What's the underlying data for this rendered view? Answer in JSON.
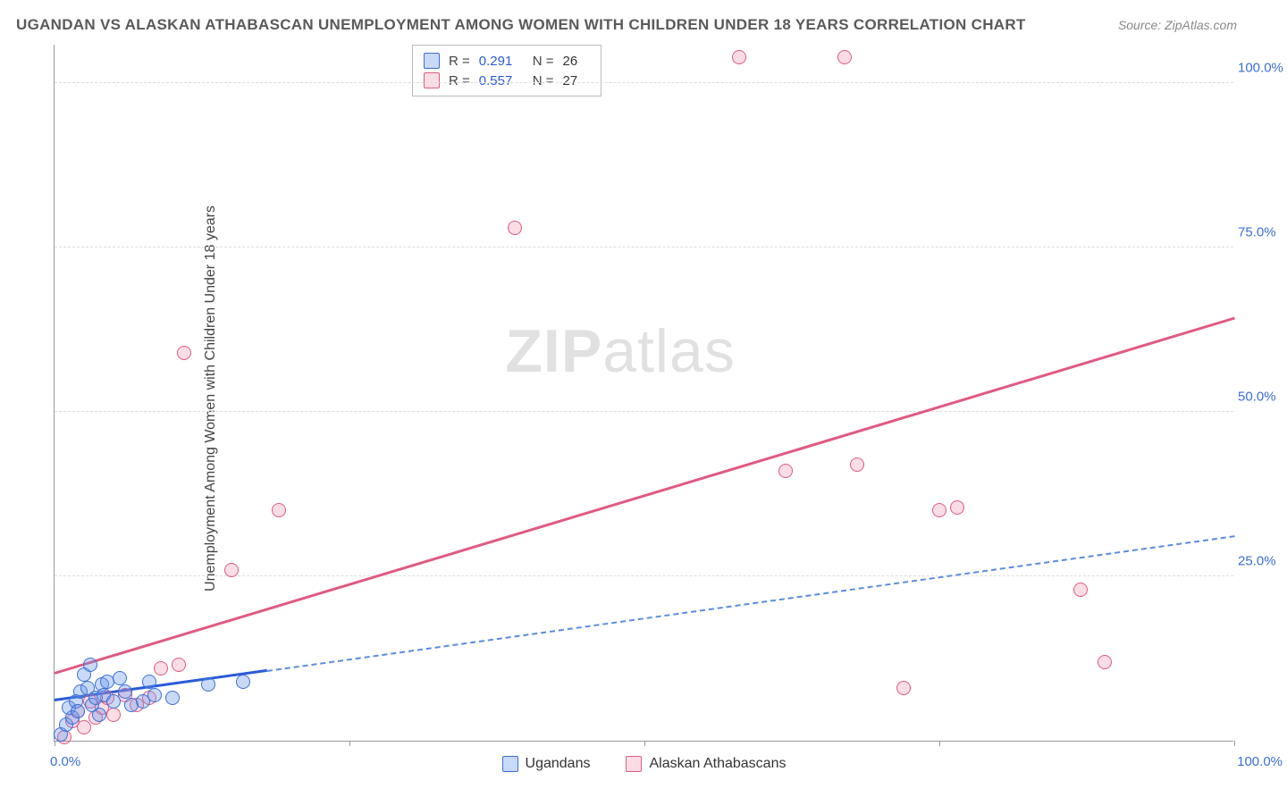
{
  "title": "UGANDAN VS ALASKAN ATHABASCAN UNEMPLOYMENT AMONG WOMEN WITH CHILDREN UNDER 18 YEARS CORRELATION CHART",
  "source": "Source: ZipAtlas.com",
  "ylabel": "Unemployment Among Women with Children Under 18 years",
  "watermark_part1": "ZIP",
  "watermark_part2": "atlas",
  "axes": {
    "xlim": [
      0,
      100
    ],
    "ylim": [
      0,
      106
    ],
    "yticks": [
      {
        "v": 25,
        "label": "25.0%"
      },
      {
        "v": 50,
        "label": "50.0%"
      },
      {
        "v": 75,
        "label": "75.0%"
      },
      {
        "v": 100,
        "label": "100.0%"
      }
    ],
    "xticks_major": [
      0,
      25,
      50,
      75,
      100
    ],
    "xlabel_min": "0.0%",
    "xlabel_max": "100.0%"
  },
  "stats": {
    "series1": {
      "R": "0.291",
      "N": "26"
    },
    "series2": {
      "R": "0.557",
      "N": "27"
    }
  },
  "legend": {
    "series1": "Ugandans",
    "series2": "Alaskan Athabascans"
  },
  "colors": {
    "blue_stroke": "#3b6fd6",
    "blue_fill": "rgba(100,149,237,0.35)",
    "blue_line": "#2a5bd7",
    "pink_stroke": "#e05a82",
    "pink_fill": "rgba(240,120,150,0.25)",
    "pink_line": "#e05a82",
    "grid": "#dddddd",
    "text_tick": "#3b6fd6"
  },
  "series": {
    "ugandans": {
      "points": [
        [
          0.5,
          1.0
        ],
        [
          1.0,
          2.5
        ],
        [
          1.2,
          5.0
        ],
        [
          1.5,
          3.5
        ],
        [
          1.8,
          6.0
        ],
        [
          2.0,
          4.5
        ],
        [
          2.2,
          7.5
        ],
        [
          2.5,
          10.0
        ],
        [
          2.8,
          8.0
        ],
        [
          3.0,
          11.5
        ],
        [
          3.2,
          5.5
        ],
        [
          3.5,
          6.5
        ],
        [
          3.8,
          4.0
        ],
        [
          4.0,
          8.5
        ],
        [
          4.2,
          7.0
        ],
        [
          4.5,
          9.0
        ],
        [
          5.0,
          6.0
        ],
        [
          5.5,
          9.5
        ],
        [
          6.0,
          7.5
        ],
        [
          6.5,
          5.5
        ],
        [
          7.5,
          6.0
        ],
        [
          8.0,
          9.0
        ],
        [
          8.5,
          7.0
        ],
        [
          10.0,
          6.5
        ],
        [
          13.0,
          8.5
        ],
        [
          16.0,
          9.0
        ]
      ],
      "trend": {
        "x1": 0,
        "y1": 6.0,
        "x2_solid": 18,
        "x2_dash": 100,
        "y2": 31.0
      }
    },
    "athabascans": {
      "points": [
        [
          0.8,
          0.5
        ],
        [
          1.5,
          3.0
        ],
        [
          2.0,
          4.5
        ],
        [
          2.5,
          2.0
        ],
        [
          3.0,
          6.0
        ],
        [
          3.5,
          3.5
        ],
        [
          4.0,
          5.0
        ],
        [
          4.5,
          6.5
        ],
        [
          5.0,
          4.0
        ],
        [
          6.0,
          7.0
        ],
        [
          7.0,
          5.5
        ],
        [
          8.0,
          6.5
        ],
        [
          9.0,
          11.0
        ],
        [
          10.5,
          11.5
        ],
        [
          11.0,
          59.0
        ],
        [
          15.0,
          26.0
        ],
        [
          19.0,
          35.0
        ],
        [
          39.0,
          78.0
        ],
        [
          58.0,
          104.0
        ],
        [
          62.0,
          41.0
        ],
        [
          67.0,
          104.0
        ],
        [
          68.0,
          42.0
        ],
        [
          75.0,
          35.0
        ],
        [
          76.5,
          35.5
        ],
        [
          87.0,
          23.0
        ],
        [
          89.0,
          12.0
        ],
        [
          72.0,
          8.0
        ]
      ],
      "trend": {
        "x1": 0,
        "y1": 10.0,
        "x2": 100,
        "y2": 64.0
      }
    }
  }
}
